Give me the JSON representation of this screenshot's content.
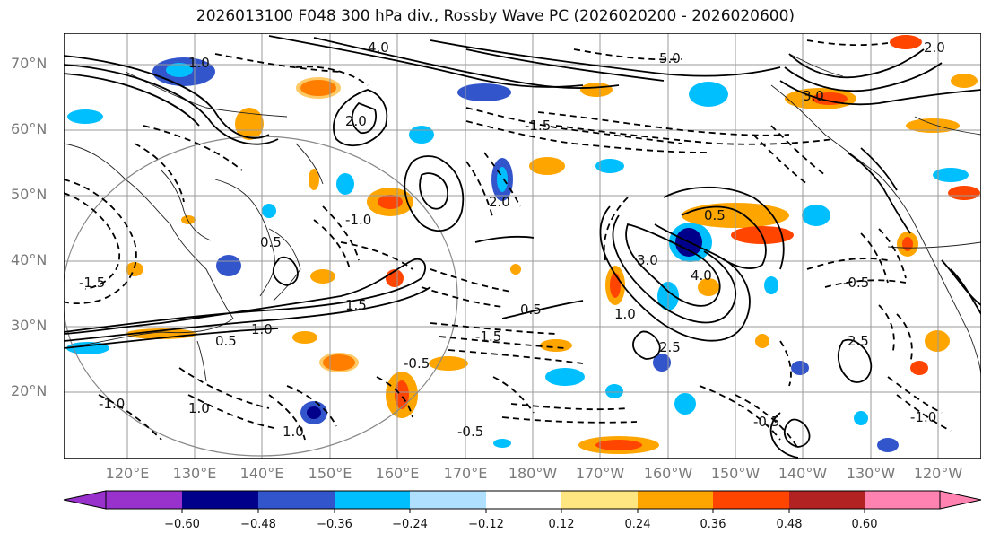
{
  "title": "2026013100 F048 300 hPa div., Rossby Wave PC (2026020200 - 2026020600)",
  "lat_labels": [
    "70°N",
    "60°N",
    "50°N",
    "40°N",
    "30°N",
    "20°N"
  ],
  "lon_labels": [
    "120°E",
    "130°E",
    "140°E",
    "150°E",
    "160°E",
    "170°E",
    "180°W",
    "170°W",
    "160°W",
    "150°W",
    "140°W",
    "130°W",
    "120°W"
  ],
  "colorbar": {
    "tick_labels": [
      "−0.60",
      "−0.48",
      "−0.36",
      "−0.24",
      "−0.12",
      "0.12",
      "0.24",
      "0.36",
      "0.48",
      "0.60"
    ],
    "colors": [
      "#9932cc",
      "#00008b",
      "#3355cc",
      "#00bfff",
      "#b0e0ff",
      "#ffffff",
      "#ffe680",
      "#ffa500",
      "#ff4500",
      "#b22222",
      "#ff82b0"
    ]
  },
  "contour_labels": [
    "1.0",
    "0.5",
    "1.5",
    "2.0",
    "2.5",
    "3.0",
    "4.0",
    "5.0",
    "-0.5",
    "-1.0",
    "-1.5",
    "-2.0"
  ]
}
